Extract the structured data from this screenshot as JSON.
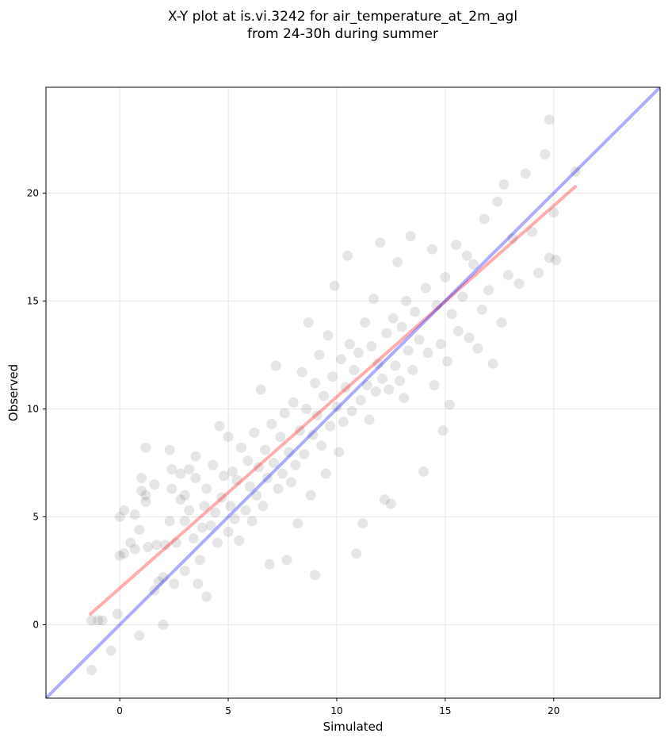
{
  "chart_data": {
    "type": "scatter",
    "title_line1": "X-Y plot at is.vi.3242 for air_temperature_at_2m_agl",
    "title_line2": "from 24-30h during summer",
    "xlabel": "Simulated",
    "ylabel": "Observed",
    "xlim": [
      -3.4,
      24.9
    ],
    "ylim": [
      -3.4,
      24.9
    ],
    "xticks": [
      0,
      5,
      10,
      15,
      20
    ],
    "yticks": [
      0,
      5,
      10,
      15,
      20
    ],
    "grid": true,
    "series": [
      {
        "kind": "scatter",
        "color": "#000000",
        "opacity": 0.1,
        "points": [
          [
            -1.3,
            -2.1
          ],
          [
            -1.3,
            0.2
          ],
          [
            -1.0,
            0.2
          ],
          [
            -0.8,
            0.2
          ],
          [
            -0.4,
            -1.2
          ],
          [
            -0.1,
            0.5
          ],
          [
            0.0,
            5.0
          ],
          [
            0.0,
            3.2
          ],
          [
            0.2,
            3.3
          ],
          [
            0.2,
            5.3
          ],
          [
            0.5,
            3.8
          ],
          [
            0.7,
            3.5
          ],
          [
            0.7,
            5.1
          ],
          [
            0.9,
            -0.5
          ],
          [
            0.9,
            4.4
          ],
          [
            1.0,
            6.8
          ],
          [
            1.0,
            6.2
          ],
          [
            1.2,
            6.0
          ],
          [
            1.2,
            5.7
          ],
          [
            1.2,
            8.2
          ],
          [
            1.3,
            3.6
          ],
          [
            1.6,
            6.5
          ],
          [
            1.6,
            1.6
          ],
          [
            1.7,
            3.7
          ],
          [
            1.8,
            2.0
          ],
          [
            2.0,
            0.0
          ],
          [
            2.0,
            2.2
          ],
          [
            2.1,
            3.7
          ],
          [
            2.3,
            8.1
          ],
          [
            2.3,
            4.8
          ],
          [
            2.4,
            7.2
          ],
          [
            2.4,
            6.3
          ],
          [
            2.5,
            1.9
          ],
          [
            2.6,
            3.8
          ],
          [
            2.8,
            5.8
          ],
          [
            2.8,
            7.0
          ],
          [
            3.0,
            4.8
          ],
          [
            3.0,
            6.0
          ],
          [
            3.0,
            2.5
          ],
          [
            3.2,
            5.3
          ],
          [
            3.2,
            7.2
          ],
          [
            3.4,
            4.0
          ],
          [
            3.5,
            6.8
          ],
          [
            3.5,
            7.8
          ],
          [
            3.6,
            1.9
          ],
          [
            3.7,
            3.0
          ],
          [
            3.8,
            4.5
          ],
          [
            3.9,
            5.5
          ],
          [
            4.0,
            1.3
          ],
          [
            4.0,
            6.3
          ],
          [
            4.2,
            4.6
          ],
          [
            4.3,
            7.4
          ],
          [
            4.4,
            5.2
          ],
          [
            4.5,
            3.8
          ],
          [
            4.6,
            9.2
          ],
          [
            4.7,
            5.9
          ],
          [
            4.8,
            6.9
          ],
          [
            5.0,
            4.3
          ],
          [
            5.0,
            8.7
          ],
          [
            5.1,
            5.5
          ],
          [
            5.2,
            7.1
          ],
          [
            5.3,
            4.9
          ],
          [
            5.4,
            6.7
          ],
          [
            5.5,
            3.9
          ],
          [
            5.6,
            8.2
          ],
          [
            5.8,
            5.3
          ],
          [
            5.9,
            7.6
          ],
          [
            6.0,
            6.4
          ],
          [
            6.1,
            4.8
          ],
          [
            6.2,
            8.9
          ],
          [
            6.3,
            6.0
          ],
          [
            6.4,
            7.3
          ],
          [
            6.5,
            10.9
          ],
          [
            6.6,
            5.5
          ],
          [
            6.7,
            8.1
          ],
          [
            6.8,
            6.8
          ],
          [
            6.9,
            2.8
          ],
          [
            7.0,
            9.3
          ],
          [
            7.1,
            7.5
          ],
          [
            7.2,
            12.0
          ],
          [
            7.3,
            6.3
          ],
          [
            7.4,
            8.7
          ],
          [
            7.5,
            7.0
          ],
          [
            7.6,
            9.8
          ],
          [
            7.7,
            3.0
          ],
          [
            7.8,
            8.0
          ],
          [
            7.9,
            6.6
          ],
          [
            8.0,
            10.3
          ],
          [
            8.1,
            7.4
          ],
          [
            8.2,
            4.7
          ],
          [
            8.3,
            9.0
          ],
          [
            8.4,
            11.7
          ],
          [
            8.5,
            7.9
          ],
          [
            8.6,
            10.0
          ],
          [
            8.7,
            14.0
          ],
          [
            8.8,
            6.0
          ],
          [
            8.9,
            8.8
          ],
          [
            9.0,
            11.2
          ],
          [
            9.0,
            2.3
          ],
          [
            9.1,
            9.7
          ],
          [
            9.2,
            12.5
          ],
          [
            9.3,
            8.3
          ],
          [
            9.4,
            10.6
          ],
          [
            9.5,
            7.0
          ],
          [
            9.6,
            13.4
          ],
          [
            9.7,
            9.2
          ],
          [
            9.8,
            11.5
          ],
          [
            9.9,
            15.7
          ],
          [
            10.0,
            10.1
          ],
          [
            10.1,
            8.0
          ],
          [
            10.2,
            12.3
          ],
          [
            10.3,
            9.4
          ],
          [
            10.4,
            11.0
          ],
          [
            10.5,
            17.1
          ],
          [
            10.6,
            13.0
          ],
          [
            10.7,
            9.9
          ],
          [
            10.8,
            11.8
          ],
          [
            10.9,
            3.3
          ],
          [
            11.0,
            12.6
          ],
          [
            11.1,
            10.4
          ],
          [
            11.2,
            4.7
          ],
          [
            11.3,
            14.0
          ],
          [
            11.4,
            11.1
          ],
          [
            11.5,
            9.5
          ],
          [
            11.6,
            12.9
          ],
          [
            11.7,
            15.1
          ],
          [
            11.8,
            10.8
          ],
          [
            11.9,
            12.1
          ],
          [
            12.0,
            17.7
          ],
          [
            12.1,
            11.4
          ],
          [
            12.2,
            5.8
          ],
          [
            12.3,
            13.5
          ],
          [
            12.4,
            10.9
          ],
          [
            12.5,
            5.6
          ],
          [
            12.6,
            14.2
          ],
          [
            12.7,
            12.0
          ],
          [
            12.8,
            16.8
          ],
          [
            12.9,
            11.3
          ],
          [
            13.0,
            13.8
          ],
          [
            13.1,
            10.5
          ],
          [
            13.2,
            15.0
          ],
          [
            13.3,
            12.7
          ],
          [
            13.4,
            18.0
          ],
          [
            13.5,
            11.8
          ],
          [
            13.6,
            14.5
          ],
          [
            13.8,
            13.2
          ],
          [
            14.0,
            7.1
          ],
          [
            14.1,
            15.6
          ],
          [
            14.2,
            12.6
          ],
          [
            14.4,
            17.4
          ],
          [
            14.5,
            11.1
          ],
          [
            14.6,
            14.8
          ],
          [
            14.8,
            13.0
          ],
          [
            14.9,
            9.0
          ],
          [
            15.0,
            16.1
          ],
          [
            15.1,
            12.2
          ],
          [
            15.2,
            10.2
          ],
          [
            15.3,
            14.4
          ],
          [
            15.5,
            17.6
          ],
          [
            15.6,
            13.6
          ],
          [
            15.8,
            15.2
          ],
          [
            16.0,
            17.1
          ],
          [
            16.1,
            13.3
          ],
          [
            16.3,
            16.7
          ],
          [
            16.5,
            12.8
          ],
          [
            16.7,
            14.6
          ],
          [
            16.8,
            18.8
          ],
          [
            17.0,
            15.5
          ],
          [
            17.2,
            12.1
          ],
          [
            17.4,
            19.6
          ],
          [
            17.6,
            14.0
          ],
          [
            17.7,
            20.4
          ],
          [
            17.9,
            16.2
          ],
          [
            18.1,
            17.9
          ],
          [
            18.4,
            15.8
          ],
          [
            18.7,
            20.9
          ],
          [
            19.0,
            18.2
          ],
          [
            19.3,
            16.3
          ],
          [
            19.6,
            21.8
          ],
          [
            19.8,
            23.4
          ],
          [
            19.8,
            17.0
          ],
          [
            20.0,
            19.1
          ],
          [
            20.1,
            16.9
          ],
          [
            21.0,
            21.0
          ]
        ]
      },
      {
        "kind": "line",
        "name": "",
        "color": "#ff0000",
        "opacity": 0.32,
        "x": [
          -1.35,
          21.0
        ],
        "y": [
          0.5,
          20.3
        ]
      },
      {
        "kind": "line",
        "name": "",
        "color": "#0000ff",
        "opacity": 0.32,
        "x": [
          -3.4,
          24.9
        ],
        "y": [
          -3.4,
          24.9
        ]
      }
    ]
  }
}
